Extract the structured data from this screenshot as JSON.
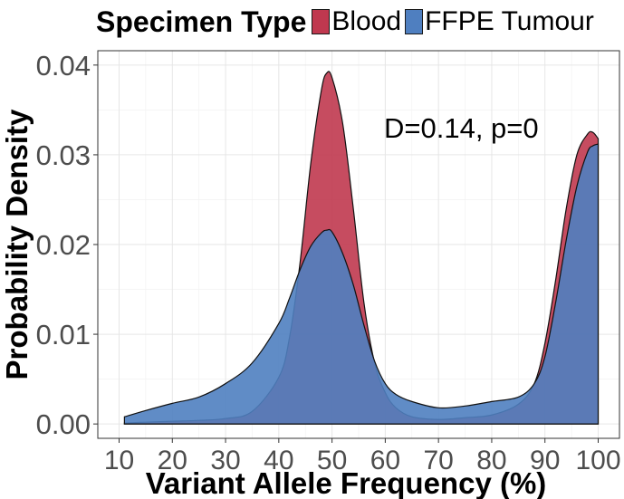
{
  "chart_data": {
    "type": "area",
    "title": "",
    "xlabel": "Variant Allele Frequency (%)",
    "ylabel": "Probability Density",
    "xlim": [
      6,
      104
    ],
    "ylim": [
      -0.0016,
      0.0416
    ],
    "x_ticks": [
      10,
      20,
      30,
      40,
      50,
      60,
      70,
      80,
      90,
      100
    ],
    "x_tick_labels": [
      "10",
      "20",
      "30",
      "40",
      "50",
      "60",
      "70",
      "80",
      "90",
      "100"
    ],
    "y_ticks": [
      0,
      0.01,
      0.02,
      0.03,
      0.04
    ],
    "y_tick_labels": [
      "0.00",
      "0.01",
      "0.02",
      "0.03",
      "0.04"
    ],
    "grid": true,
    "legend": {
      "title": "Specimen Type",
      "position": "top",
      "entries": [
        {
          "name": "Blood",
          "color": "#c0384f"
        },
        {
          "name": "FFPE Tumour",
          "color": "#4f7fc0"
        }
      ]
    },
    "annotation": "D=0.14, p=0",
    "x": [
      11,
      15,
      20,
      25,
      30,
      35,
      40,
      42,
      44,
      46,
      48,
      49,
      50,
      52,
      54,
      56,
      58,
      60,
      62,
      65,
      70,
      75,
      80,
      85,
      88,
      90,
      92,
      94,
      96,
      98,
      99,
      100
    ],
    "series": [
      {
        "name": "Blood",
        "color": "#c0384f",
        "values": [
          0.0001,
          0.0002,
          0.0003,
          0.0004,
          0.0006,
          0.0014,
          0.0052,
          0.0096,
          0.018,
          0.029,
          0.0372,
          0.0391,
          0.0386,
          0.0335,
          0.024,
          0.0135,
          0.0068,
          0.0035,
          0.0018,
          0.0008,
          0.0005,
          0.0007,
          0.001,
          0.0022,
          0.0045,
          0.009,
          0.016,
          0.024,
          0.03,
          0.0323,
          0.0325,
          0.0318
        ]
      },
      {
        "name": "FFPE Tumour",
        "color": "#4f7fc0",
        "values": [
          0.0008,
          0.0015,
          0.0023,
          0.003,
          0.0045,
          0.0068,
          0.0112,
          0.014,
          0.0172,
          0.0198,
          0.0213,
          0.0216,
          0.0214,
          0.019,
          0.0155,
          0.011,
          0.007,
          0.0045,
          0.0033,
          0.0025,
          0.0018,
          0.002,
          0.0025,
          0.003,
          0.0045,
          0.0075,
          0.0135,
          0.0205,
          0.0265,
          0.0303,
          0.031,
          0.0312
        ]
      }
    ]
  }
}
